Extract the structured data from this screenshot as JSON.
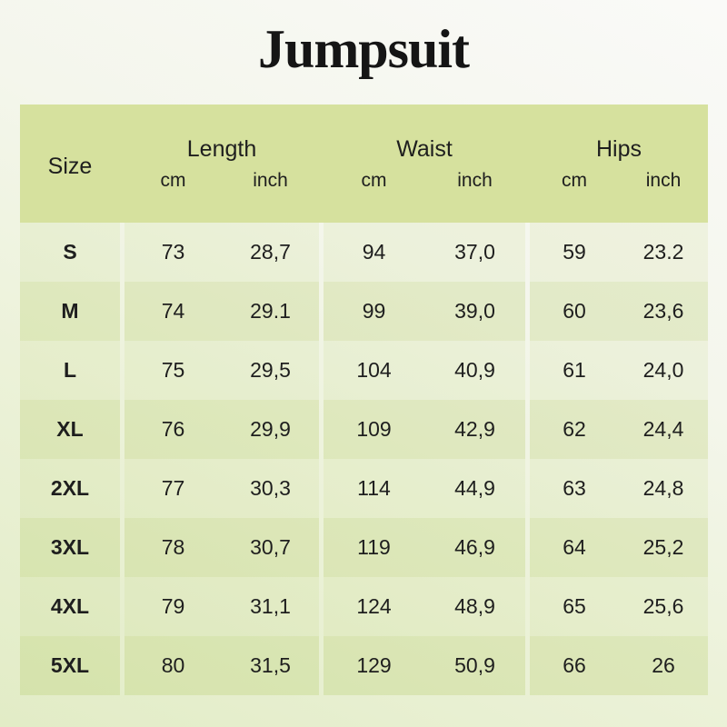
{
  "title": "Jumpsuit",
  "chart_data": {
    "type": "table",
    "title": "Jumpsuit",
    "size_column_header": "Size",
    "column_groups": [
      {
        "label": "Length",
        "units": [
          "cm",
          "inch"
        ]
      },
      {
        "label": "Waist",
        "units": [
          "cm",
          "inch"
        ]
      },
      {
        "label": "Hips",
        "units": [
          "cm",
          "inch"
        ]
      }
    ],
    "rows": [
      {
        "size": "S",
        "values": [
          "73",
          "28,7",
          "94",
          "37,0",
          "59",
          "23.2"
        ]
      },
      {
        "size": "M",
        "values": [
          "74",
          "29.1",
          "99",
          "39,0",
          "60",
          "23,6"
        ]
      },
      {
        "size": "L",
        "values": [
          "75",
          "29,5",
          "104",
          "40,9",
          "61",
          "24,0"
        ]
      },
      {
        "size": "XL",
        "values": [
          "76",
          "29,9",
          "109",
          "42,9",
          "62",
          "24,4"
        ]
      },
      {
        "size": "2XL",
        "values": [
          "77",
          "30,3",
          "114",
          "44,9",
          "63",
          "24,8"
        ]
      },
      {
        "size": "3XL",
        "values": [
          "78",
          "30,7",
          "119",
          "46,9",
          "64",
          "25,2"
        ]
      },
      {
        "size": "4XL",
        "values": [
          "79",
          "31,1",
          "124",
          "48,9",
          "65",
          "25,6"
        ]
      },
      {
        "size": "5XL",
        "values": [
          "80",
          "31,5",
          "129",
          "50,9",
          "66",
          "26"
        ]
      }
    ]
  },
  "colors": {
    "header_band": "#d6e19e",
    "background_top": "#fafaf8",
    "background_bottom": "#e2ecc6",
    "text": "#1e1e1e"
  }
}
